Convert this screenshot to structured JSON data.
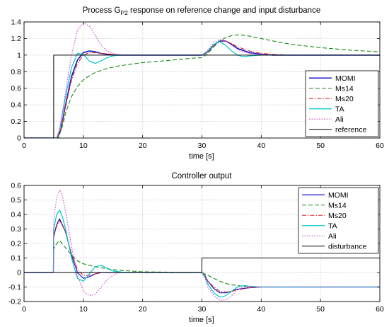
{
  "chart_data": [
    {
      "type": "line",
      "title_main": "Process G",
      "title_sub": "P2",
      "title_rest": " response on reference change and input disturbance",
      "xlabel": "time [s]",
      "ylabel": "",
      "xlim": [
        0,
        60
      ],
      "ylim": [
        0,
        1.4
      ],
      "xticks": [
        "0",
        "10",
        "20",
        "30",
        "40",
        "50",
        "60"
      ],
      "yticks": [
        "0",
        "0.2",
        "0.4",
        "0.6",
        "0.8",
        "1",
        "1.2",
        "1.4"
      ],
      "grid": true,
      "legend_position": "bottom-right",
      "series": [
        {
          "name": "MOMI",
          "color": "#1515c8",
          "dash": "",
          "width": 1.6,
          "x": [
            0,
            5.6,
            6.2,
            7,
            8,
            9,
            10,
            11,
            12,
            13,
            14,
            15,
            17,
            20,
            25,
            30,
            31,
            32,
            33,
            34,
            35,
            36,
            38,
            40,
            42,
            45,
            50,
            60
          ],
          "y": [
            0,
            0,
            0.1,
            0.4,
            0.74,
            0.94,
            1.03,
            1.05,
            1.04,
            1.02,
            1.01,
            1.0,
            1.0,
            1.0,
            1.0,
            1.0,
            1.04,
            1.12,
            1.17,
            1.17,
            1.13,
            1.08,
            1.03,
            1.01,
            1.0,
            1.0,
            1.0,
            1.0
          ]
        },
        {
          "name": "Ms14",
          "color": "#1a8a1a",
          "dash": "6,3",
          "width": 1.1,
          "x": [
            0,
            5.8,
            6.5,
            7,
            8,
            9,
            10,
            11,
            12,
            14,
            16,
            18,
            20,
            22,
            25,
            28,
            30,
            31,
            32,
            33,
            34,
            35,
            36,
            37,
            38,
            40,
            42,
            45,
            50,
            55,
            60
          ],
          "y": [
            0,
            0,
            0.15,
            0.3,
            0.5,
            0.62,
            0.7,
            0.75,
            0.79,
            0.84,
            0.87,
            0.89,
            0.91,
            0.92,
            0.94,
            0.96,
            0.97,
            1.02,
            1.1,
            1.17,
            1.21,
            1.235,
            1.245,
            1.24,
            1.23,
            1.2,
            1.17,
            1.13,
            1.09,
            1.06,
            1.04
          ]
        },
        {
          "name": "Ms20",
          "color": "#e02020",
          "dash": "6,2,1.5,2",
          "width": 1.1,
          "x": [
            0,
            5.6,
            6.2,
            7,
            8,
            9,
            10,
            11,
            12,
            13,
            15,
            17,
            20,
            25,
            30,
            31,
            32,
            33,
            34,
            35,
            36,
            38,
            40,
            42,
            45,
            50,
            60
          ],
          "y": [
            0,
            0,
            0.1,
            0.38,
            0.7,
            0.9,
            1.0,
            1.03,
            1.03,
            1.02,
            1.01,
            1.0,
            1.0,
            1.0,
            1.0,
            1.04,
            1.12,
            1.16,
            1.17,
            1.14,
            1.1,
            1.05,
            1.02,
            1.01,
            1.0,
            1.0,
            1.0
          ]
        },
        {
          "name": "TA",
          "color": "#00c8c8",
          "dash": "",
          "width": 1.2,
          "x": [
            0,
            5.5,
            6,
            7,
            8,
            9,
            10,
            11,
            12,
            13,
            14,
            15,
            16,
            18,
            20,
            25,
            30,
            31,
            32,
            33,
            34,
            35,
            36,
            37,
            38,
            40,
            42,
            45,
            50,
            60
          ],
          "y": [
            0,
            0,
            0.1,
            0.5,
            0.85,
            1.02,
            1.01,
            0.93,
            0.9,
            0.93,
            0.97,
            0.99,
            1.0,
            1.0,
            1.0,
            1.0,
            1.0,
            1.05,
            1.13,
            1.16,
            1.12,
            1.05,
            1.0,
            0.98,
            0.99,
            1.0,
            1.0,
            1.0,
            1.0,
            1.0
          ]
        },
        {
          "name": "Ali",
          "color": "#d050d0",
          "dash": "1.5,2",
          "width": 1.2,
          "x": [
            0,
            5.5,
            6,
            7,
            8,
            9,
            10,
            11,
            12,
            13,
            14,
            15,
            16,
            18,
            20,
            25,
            30,
            31,
            32,
            33,
            34,
            35,
            36,
            37,
            38,
            40,
            42,
            45,
            50,
            60
          ],
          "y": [
            0,
            0,
            0.1,
            0.55,
            1.0,
            1.3,
            1.39,
            1.35,
            1.24,
            1.12,
            1.05,
            1.02,
            1.0,
            1.0,
            1.0,
            1.0,
            1.0,
            1.06,
            1.15,
            1.19,
            1.17,
            1.12,
            1.07,
            1.04,
            1.02,
            1.01,
            1.0,
            1.0,
            1.0,
            1.0
          ]
        },
        {
          "name": "reference",
          "color": "#000000",
          "dash": "",
          "width": 1.0,
          "x": [
            0,
            5,
            5,
            60
          ],
          "y": [
            0,
            0,
            1,
            1
          ]
        }
      ]
    },
    {
      "type": "line",
      "title": "Controller output",
      "xlabel": "time [s]",
      "ylabel": "",
      "xlim": [
        0,
        60
      ],
      "ylim": [
        -0.2,
        0.6
      ],
      "xticks": [
        "0",
        "10",
        "20",
        "30",
        "40",
        "50",
        "60"
      ],
      "yticks": [
        "-0.2",
        "-0.1",
        "0",
        "0.1",
        "0.2",
        "0.3",
        "0.4",
        "0.5",
        "0.6"
      ],
      "grid": true,
      "legend_position": "top-right",
      "series": [
        {
          "name": "MOMI",
          "color": "#1515c8",
          "dash": "",
          "width": 1.2,
          "x": [
            0,
            4.95,
            5,
            5.5,
            6,
            7,
            8,
            9,
            10,
            11,
            12,
            13,
            15,
            18,
            20,
            25,
            30,
            30.5,
            31,
            32,
            33,
            34,
            35,
            36,
            38,
            40,
            45,
            50,
            60
          ],
          "y": [
            0,
            0,
            0.25,
            0.33,
            0.37,
            0.28,
            0.12,
            0.0,
            -0.04,
            -0.03,
            -0.01,
            0.0,
            0.0,
            0.0,
            0.0,
            0.0,
            0.0,
            -0.02,
            -0.06,
            -0.11,
            -0.14,
            -0.14,
            -0.13,
            -0.115,
            -0.105,
            -0.1,
            -0.1,
            -0.1,
            -0.1
          ]
        },
        {
          "name": "Ms14",
          "color": "#1a8a1a",
          "dash": "6,3",
          "width": 1.1,
          "x": [
            0,
            4.95,
            5,
            5.5,
            6,
            7,
            8,
            9,
            10,
            12,
            14,
            16,
            18,
            20,
            25,
            30,
            30.5,
            31,
            32,
            33,
            34,
            35,
            36,
            37,
            38,
            40,
            45,
            50,
            60
          ],
          "y": [
            0,
            0,
            0.16,
            0.2,
            0.22,
            0.17,
            0.12,
            0.08,
            0.06,
            0.04,
            0.025,
            0.015,
            0.01,
            0.005,
            0.002,
            0.0,
            -0.01,
            -0.02,
            -0.04,
            -0.06,
            -0.075,
            -0.085,
            -0.09,
            -0.095,
            -0.098,
            -0.1,
            -0.1,
            -0.1,
            -0.1
          ]
        },
        {
          "name": "Ms20",
          "color": "#e02020",
          "dash": "6,2,1.5,2",
          "width": 1.1,
          "x": [
            0,
            4.95,
            5,
            5.5,
            6,
            7,
            8,
            9,
            10,
            11,
            12,
            13,
            15,
            18,
            20,
            25,
            30,
            30.5,
            31,
            32,
            33,
            34,
            35,
            36,
            38,
            40,
            45,
            50,
            60
          ],
          "y": [
            0,
            0,
            0.24,
            0.32,
            0.36,
            0.28,
            0.13,
            0.02,
            -0.02,
            -0.02,
            -0.01,
            0.0,
            0.0,
            0.0,
            0.0,
            0.0,
            0.0,
            -0.02,
            -0.06,
            -0.1,
            -0.13,
            -0.135,
            -0.13,
            -0.12,
            -0.105,
            -0.1,
            -0.1,
            -0.1,
            -0.1
          ]
        },
        {
          "name": "TA",
          "color": "#00c8c8",
          "dash": "",
          "width": 1.2,
          "x": [
            0,
            4.95,
            5,
            5.5,
            6,
            6.5,
            7,
            8,
            9,
            10,
            11,
            12,
            13,
            14,
            15,
            17,
            20,
            25,
            30,
            30.5,
            31,
            32,
            33,
            34,
            35,
            36,
            37,
            38,
            40,
            45,
            50,
            60
          ],
          "y": [
            0,
            0,
            0.3,
            0.4,
            0.43,
            0.38,
            0.3,
            0.1,
            -0.04,
            -0.06,
            -0.01,
            0.04,
            0.05,
            0.03,
            0.01,
            0.0,
            0.0,
            0.0,
            0.0,
            -0.03,
            -0.08,
            -0.14,
            -0.17,
            -0.16,
            -0.13,
            -0.1,
            -0.09,
            -0.095,
            -0.1,
            -0.1,
            -0.1,
            -0.1
          ]
        },
        {
          "name": "Ali",
          "color": "#d050d0",
          "dash": "1.5,2",
          "width": 1.2,
          "x": [
            0,
            4.95,
            5,
            5.5,
            6,
            6.5,
            7,
            8,
            9,
            10,
            11,
            12,
            13,
            14,
            15,
            16,
            18,
            20,
            25,
            30,
            30.5,
            31,
            32,
            33,
            34,
            35,
            36,
            37,
            38,
            40,
            45,
            50,
            60
          ],
          "y": [
            0,
            0,
            0.35,
            0.52,
            0.57,
            0.52,
            0.42,
            0.18,
            -0.02,
            -0.13,
            -0.16,
            -0.15,
            -0.1,
            -0.05,
            -0.02,
            0.0,
            0.0,
            0.0,
            0.0,
            0.0,
            -0.04,
            -0.1,
            -0.16,
            -0.19,
            -0.19,
            -0.16,
            -0.12,
            -0.1,
            -0.095,
            -0.1,
            -0.1,
            -0.1,
            -0.1
          ]
        },
        {
          "name": "disturbance",
          "color": "#000000",
          "dash": "",
          "width": 1.0,
          "x": [
            0,
            30,
            30,
            60
          ],
          "y": [
            0,
            0,
            0.1,
            0.1
          ]
        }
      ]
    }
  ]
}
